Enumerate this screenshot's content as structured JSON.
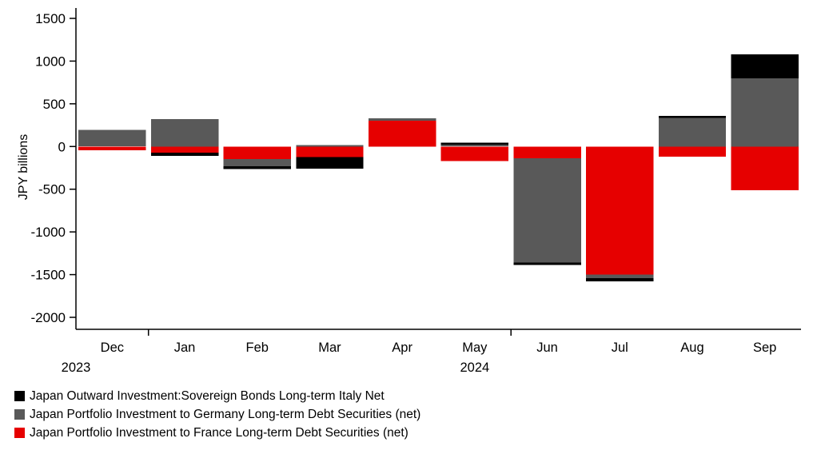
{
  "chart_data": {
    "type": "bar",
    "stacked": true,
    "title": "",
    "ylabel": "JPY billions",
    "xlabel": "",
    "ylim": [
      -2000,
      1500
    ],
    "yticks": [
      1500,
      1000,
      500,
      0,
      -500,
      -1000,
      -1500,
      -2000
    ],
    "grid": false,
    "legend_position": "bottom-left",
    "categories": [
      "Dec",
      "Jan",
      "Feb",
      "Mar",
      "Apr",
      "May",
      "Jun",
      "Jul",
      "Aug",
      "Sep"
    ],
    "year_labels": [
      {
        "text": "2023",
        "category_index": 0
      },
      {
        "text": "2024",
        "category_index": 5
      }
    ],
    "stack_order_from_zero": [
      "France",
      "Germany",
      "Italy"
    ],
    "series": [
      {
        "name": "Italy",
        "label": "Japan Outward Investment:Sovereign Bonds Long-term Italy Net",
        "color": "#000000",
        "values": [
          0,
          -40,
          -35,
          -135,
          0,
          25,
          -25,
          -40,
          25,
          280
        ]
      },
      {
        "name": "Germany",
        "label": "Japan Portfolio Investment to Germany Long-term Debt Securities (net)",
        "color": "#595959",
        "values": [
          195,
          320,
          -85,
          15,
          30,
          20,
          -1220,
          -40,
          335,
          800
        ]
      },
      {
        "name": "France",
        "label": "Japan Portfolio Investment to France Long-term Debt Securities (net)",
        "color": "#e60000",
        "values": [
          -45,
          -70,
          -145,
          -125,
          300,
          -170,
          -140,
          -1500,
          -120,
          -510
        ]
      }
    ]
  }
}
